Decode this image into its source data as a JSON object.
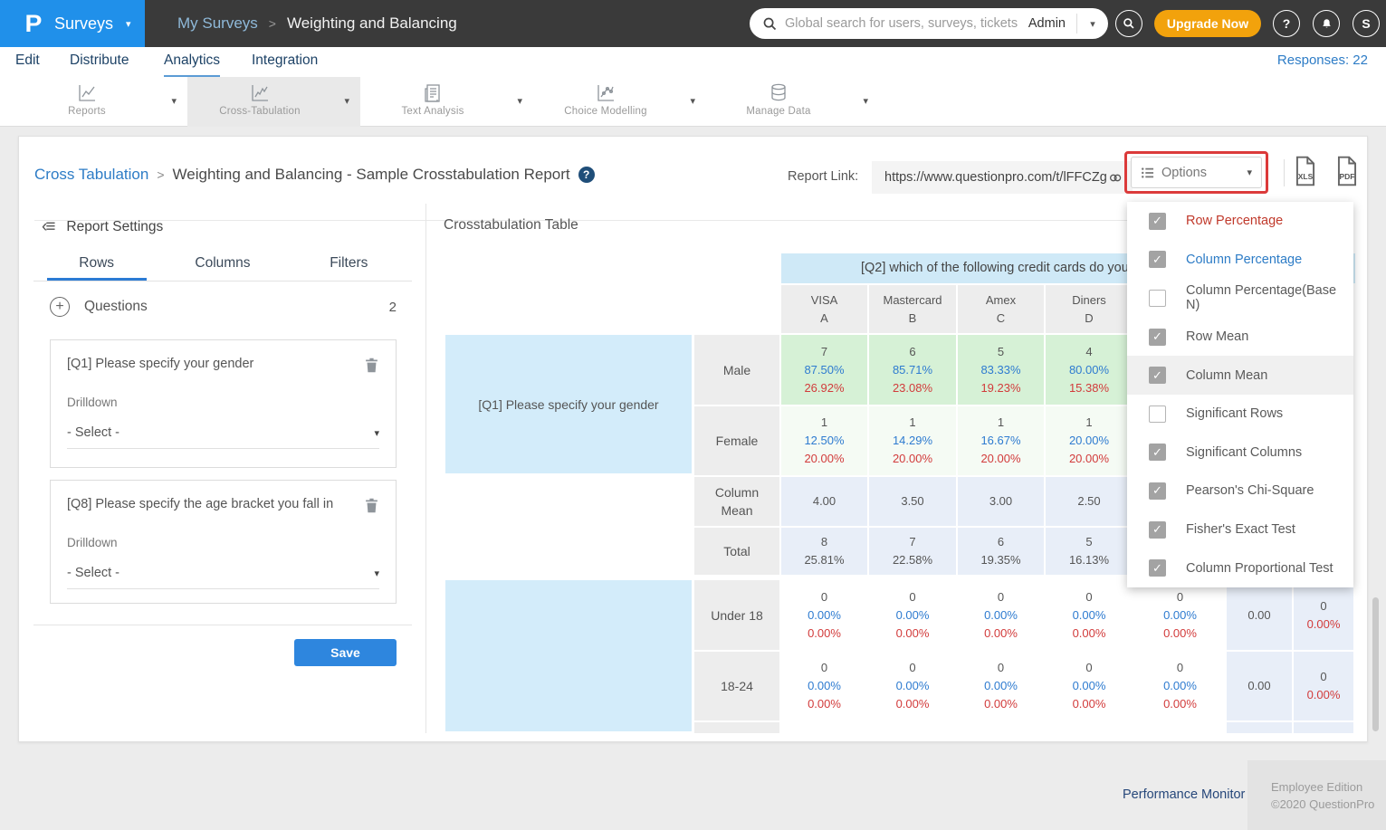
{
  "topbar": {
    "logo_letter": "P",
    "product": "Surveys",
    "breadcrumb_parent": "My Surveys",
    "breadcrumb_current": "Weighting and Balancing",
    "search_placeholder": "Global search for users, surveys, tickets",
    "search_scope": "Admin",
    "upgrade_label": "Upgrade Now",
    "avatar_initial": "S"
  },
  "nav": {
    "items": [
      "Edit",
      "Distribute",
      "Analytics",
      "Integration"
    ],
    "active": "Analytics",
    "responses_label": "Responses: 22"
  },
  "toolbar": {
    "items": [
      "Reports",
      "Cross-Tabulation",
      "Text Analysis",
      "Choice Modelling",
      "Manage Data"
    ],
    "active": "Cross-Tabulation"
  },
  "report_header": {
    "breadcrumb_link": "Cross Tabulation",
    "title": "Weighting and Balancing - Sample Crosstabulation Report",
    "help_glyph": "?",
    "report_link_label": "Report Link:",
    "report_url": "https://www.questionpro.com/t/lFFCZg",
    "options_label": "Options",
    "export_xls": "XLS",
    "export_pdf": "PDF"
  },
  "settings_panel": {
    "title": "Report Settings",
    "tabs": [
      "Rows",
      "Columns",
      "Filters"
    ],
    "active_tab": "Rows",
    "questions_label": "Questions",
    "questions_count": "2",
    "questions": [
      {
        "title": "[Q1] Please specify your gender",
        "drilldown_label": "Drilldown",
        "select_value": "- Select -"
      },
      {
        "title": "[Q8] Please specify the age bracket you fall in",
        "drilldown_label": "Drilldown",
        "select_value": "- Select -"
      }
    ],
    "save_label": "Save"
  },
  "options_menu": {
    "items": [
      {
        "label": "Row Percentage",
        "checked": true,
        "color": "red",
        "highlighted": false
      },
      {
        "label": "Column Percentage",
        "checked": true,
        "color": "blue",
        "highlighted": false
      },
      {
        "label": "Column Percentage(Base N)",
        "checked": false,
        "color": "gray",
        "highlighted": false
      },
      {
        "label": "Row Mean",
        "checked": true,
        "color": "gray",
        "highlighted": false
      },
      {
        "label": "Column Mean",
        "checked": true,
        "color": "gray",
        "highlighted": true
      },
      {
        "label": "Significant Rows",
        "checked": false,
        "color": "gray",
        "highlighted": false
      },
      {
        "label": "Significant Columns",
        "checked": true,
        "color": "gray",
        "highlighted": false
      },
      {
        "label": "Pearson's Chi-Square",
        "checked": true,
        "color": "gray",
        "highlighted": false
      },
      {
        "label": "Fisher's Exact Test",
        "checked": true,
        "color": "gray",
        "highlighted": false
      },
      {
        "label": "Column Proportional Test",
        "checked": true,
        "color": "gray",
        "highlighted": false
      }
    ]
  },
  "crosstab": {
    "title": "Crosstabulation Table",
    "column_question": "[Q2] which of the following credit cards do you o",
    "row_question_1": "[Q1] Please specify your gender",
    "row_question_2": "",
    "columns": [
      {
        "name": "VISA",
        "code": "A"
      },
      {
        "name": "Mastercard",
        "code": "B"
      },
      {
        "name": "Amex",
        "code": "C"
      },
      {
        "name": "Diners",
        "code": "D"
      }
    ],
    "rows": [
      {
        "head": "Male",
        "cells": [
          [
            "7",
            "87.50%",
            "26.92%"
          ],
          [
            "6",
            "85.71%",
            "23.08%"
          ],
          [
            "5",
            "83.33%",
            "19.23%"
          ],
          [
            "4",
            "80.00%",
            "15.38%"
          ]
        ]
      },
      {
        "head": "Female",
        "cells": [
          [
            "1",
            "12.50%",
            "20.00%"
          ],
          [
            "1",
            "14.29%",
            "20.00%"
          ],
          [
            "1",
            "16.67%",
            "20.00%"
          ],
          [
            "1",
            "20.00%",
            "20.00%"
          ]
        ]
      },
      {
        "head": "Column Mean",
        "cells": [
          [
            "4.00"
          ],
          [
            "3.50"
          ],
          [
            "3.00"
          ],
          [
            "2.50"
          ]
        ]
      },
      {
        "head": "Total",
        "cells": [
          [
            "8",
            "25.81%"
          ],
          [
            "7",
            "22.58%"
          ],
          [
            "6",
            "19.35%"
          ],
          [
            "5",
            "16.13%"
          ]
        ]
      },
      {
        "head": "Under 18",
        "cells": [
          [
            "0",
            "0.00%",
            "0.00%"
          ],
          [
            "0",
            "0.00%",
            "0.00%"
          ],
          [
            "0",
            "0.00%",
            "0.00%"
          ],
          [
            "0",
            "0.00%",
            "0.00%"
          ]
        ],
        "col5": [
          "0",
          "0.00%",
          "0.00%"
        ],
        "row_mean": "0.00",
        "total": [
          "0",
          "0.00%"
        ]
      },
      {
        "head": "18-24",
        "cells": [
          [
            "0",
            "0.00%",
            "0.00%"
          ],
          [
            "0",
            "0.00%",
            "0.00%"
          ],
          [
            "0",
            "0.00%",
            "0.00%"
          ],
          [
            "0",
            "0.00%",
            "0.00%"
          ]
        ],
        "col5": [
          "0",
          "0.00%",
          "0.00%"
        ],
        "row_mean": "0.00",
        "total": [
          "0",
          "0.00%"
        ]
      }
    ]
  },
  "footer": {
    "performance_monitor": "Performance Monitor",
    "edition": "Employee Edition",
    "copyright": "©2020 QuestionPro"
  },
  "colors": {
    "brand_blue": "#2090ea",
    "accent_blue": "#2d7cc6",
    "highlight_red": "#db3a3a",
    "save_blue": "#2e86de",
    "upgrade_orange": "#f2a20c",
    "value_blue": "#2e7bd0",
    "value_red": "#d23b3b",
    "green_cell": "#d6f1d6",
    "summary_cell": "#e8eef8",
    "band_blue": "#cfe9f7"
  }
}
